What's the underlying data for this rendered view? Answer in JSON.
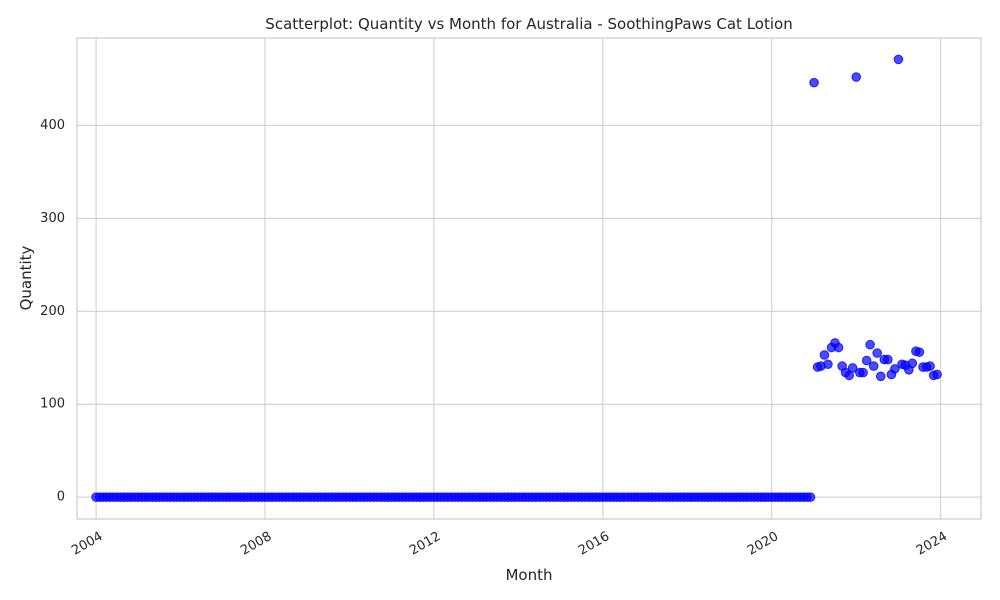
{
  "chart_data": {
    "type": "scatter",
    "title": "Scatterplot: Quantity vs Month for Australia - SoothingPaws Cat Lotion",
    "xlabel": "Month",
    "ylabel": "Quantity",
    "x_type": "date",
    "xlim": [
      "2003-07-20",
      "2024-12-15"
    ],
    "ylim": [
      -23.5,
      494
    ],
    "x_ticks": [
      "2004",
      "2008",
      "2012",
      "2016",
      "2020",
      "2024"
    ],
    "y_ticks": [
      "0",
      "100",
      "200",
      "300",
      "400"
    ],
    "grid": true,
    "point_color": "#0000ff",
    "zero_series": {
      "start": "2004-01",
      "end": "2020-12",
      "value": 0
    },
    "points": [
      {
        "x": "2021-01",
        "y": 446
      },
      {
        "x": "2021-02",
        "y": 140
      },
      {
        "x": "2021-03",
        "y": 141
      },
      {
        "x": "2021-04",
        "y": 153
      },
      {
        "x": "2021-05",
        "y": 143
      },
      {
        "x": "2021-06",
        "y": 161
      },
      {
        "x": "2021-07",
        "y": 166
      },
      {
        "x": "2021-08",
        "y": 161
      },
      {
        "x": "2021-09",
        "y": 141
      },
      {
        "x": "2021-10",
        "y": 134
      },
      {
        "x": "2021-11",
        "y": 131
      },
      {
        "x": "2021-12",
        "y": 139
      },
      {
        "x": "2022-01",
        "y": 452
      },
      {
        "x": "2022-02",
        "y": 134
      },
      {
        "x": "2022-03",
        "y": 134
      },
      {
        "x": "2022-04",
        "y": 147
      },
      {
        "x": "2022-05",
        "y": 164
      },
      {
        "x": "2022-06",
        "y": 141
      },
      {
        "x": "2022-07",
        "y": 155
      },
      {
        "x": "2022-08",
        "y": 130
      },
      {
        "x": "2022-09",
        "y": 148
      },
      {
        "x": "2022-10",
        "y": 148
      },
      {
        "x": "2022-11",
        "y": 132
      },
      {
        "x": "2022-12",
        "y": 138
      },
      {
        "x": "2023-01",
        "y": 471
      },
      {
        "x": "2023-02",
        "y": 143
      },
      {
        "x": "2023-03",
        "y": 142
      },
      {
        "x": "2023-04",
        "y": 137
      },
      {
        "x": "2023-05",
        "y": 144
      },
      {
        "x": "2023-06",
        "y": 157
      },
      {
        "x": "2023-07",
        "y": 156
      },
      {
        "x": "2023-08",
        "y": 140
      },
      {
        "x": "2023-09",
        "y": 140
      },
      {
        "x": "2023-10",
        "y": 141
      },
      {
        "x": "2023-11",
        "y": 131
      },
      {
        "x": "2023-12",
        "y": 132
      }
    ]
  }
}
